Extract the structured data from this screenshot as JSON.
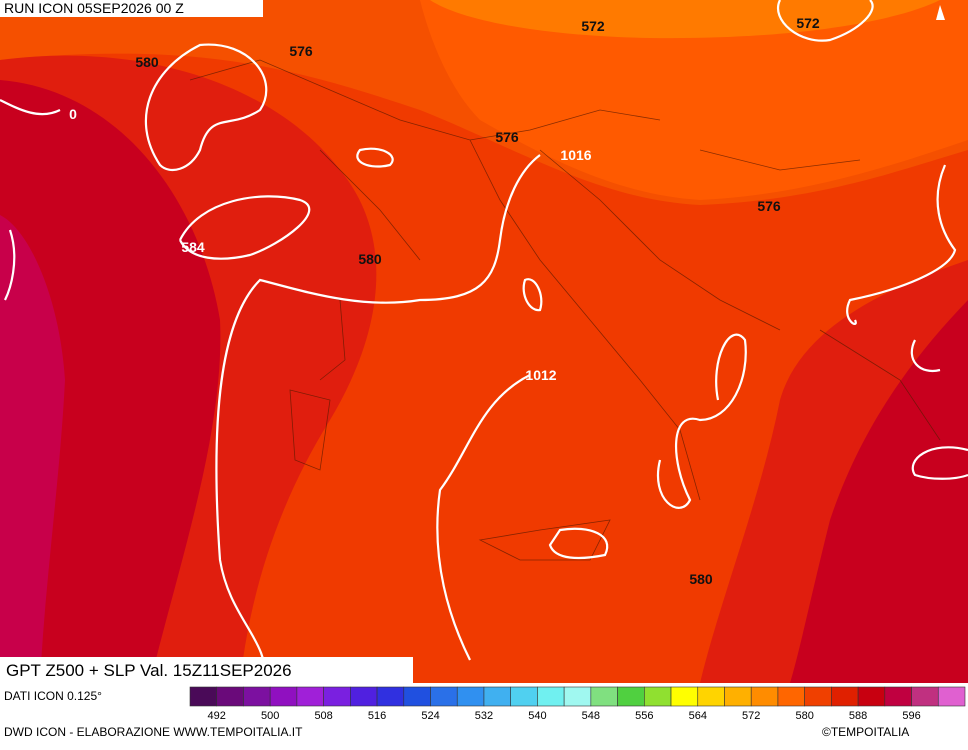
{
  "header": {
    "run": "RUN ICON 05SEP2026 00 Z",
    "title": "GPT Z500 + SLP Val. 15Z11SEP2026"
  },
  "contour_labels": [
    "580",
    "576",
    "572",
    "572",
    "576",
    "1016",
    "576",
    "584",
    "580",
    "1012",
    "580",
    "0"
  ],
  "legend": {
    "source": "DATI ICON 0.125°",
    "range": [
      488,
      604
    ],
    "colors": [
      "#4a0a58",
      "#6a0a7a",
      "#7c10a0",
      "#9010c0",
      "#a020d8",
      "#7a20e0",
      "#5020e0",
      "#3030e0",
      "#2050e0",
      "#2a70e8",
      "#3090f0",
      "#40b0f0",
      "#50d0f0",
      "#70f0f0",
      "#a0f8f0",
      "#80e080",
      "#50d040",
      "#90e030",
      "#ffff00",
      "#ffd400",
      "#ffb000",
      "#ff8c00",
      "#ff6600",
      "#f04000",
      "#e02000",
      "#c80010",
      "#c00040",
      "#c03080",
      "#e060d0"
    ],
    "ticks": [
      492,
      500,
      508,
      516,
      524,
      532,
      540,
      548,
      556,
      564,
      572,
      580,
      588,
      596
    ]
  },
  "footer": {
    "credit": "DWD ICON - ELABORAZIONE WWW.TEMPOITALIA.IT",
    "copyright": "©TEMPOITALIA"
  }
}
